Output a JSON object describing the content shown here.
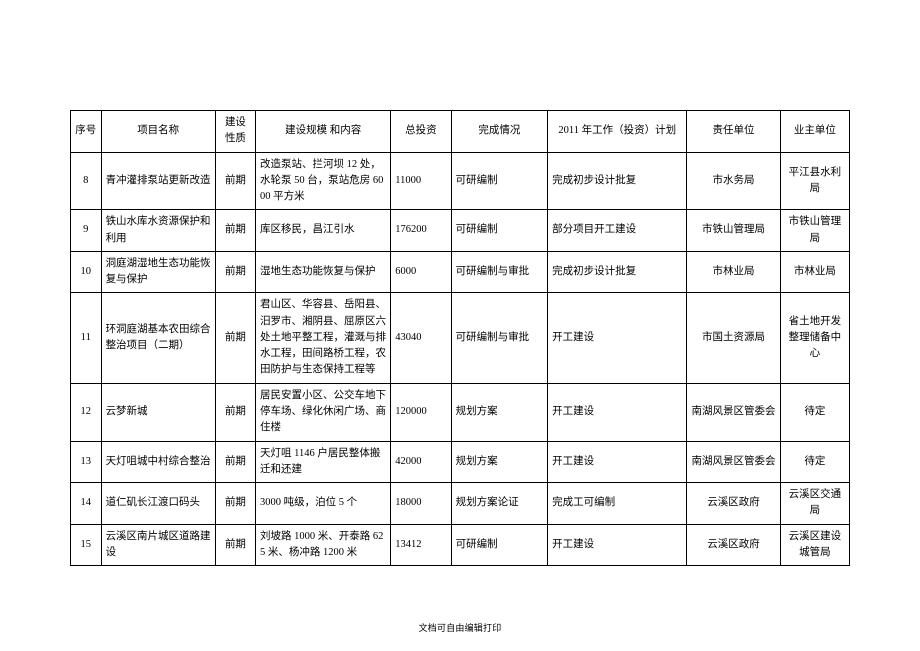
{
  "table": {
    "colwidths_pct": [
      3.8,
      14.2,
      5.0,
      16.8,
      7.5,
      12.0,
      17.3,
      11.6,
      8.6
    ],
    "background_color": "#ffffff",
    "border_color": "#000000",
    "text_color": "#000000",
    "font_size_pt": 10.5,
    "columns": [
      "序号",
      "项目名称",
      "建设性质",
      "建设规模\n和内容",
      "总投资",
      "完成情况",
      "2011 年工作（投资）计划",
      "责任单位",
      "业主单位"
    ],
    "rows": [
      {
        "seq": "8",
        "name": "青冲灌排泵站更新改造",
        "nature": "前期",
        "content": "改造泵站、拦河坝 12 处，水轮泵 50 台，泵站危房 6000 平方米",
        "invest": "11000",
        "status": "可研编制",
        "plan": "完成初步设计批复",
        "resp": "市水务局",
        "owner": "平江县水利局"
      },
      {
        "seq": "9",
        "name": "铁山水库水资源保护和利用",
        "nature": "前期",
        "content": "库区移民，昌江引水",
        "invest": "176200",
        "status": "可研编制",
        "plan": "部分项目开工建设",
        "resp": "市铁山管理局",
        "owner": "市铁山管理局"
      },
      {
        "seq": "10",
        "name": "洞庭湖湿地生态功能恢复与保护",
        "nature": "前期",
        "content": "湿地生态功能恢复与保护",
        "invest": "6000",
        "status": "可研编制与审批",
        "plan": "完成初步设计批复",
        "resp": "市林业局",
        "owner": "市林业局"
      },
      {
        "seq": "11",
        "name": "环洞庭湖基本农田综合整治项目（二期）",
        "nature": "前期",
        "content": "君山区、华容县、岳阳县、汨罗市、湘阴县、屈原区六处土地平整工程，灌溉与排水工程，田间路桥工程，农田防护与生态保持工程等",
        "invest": "43040",
        "status": "可研编制与审批",
        "plan": "开工建设",
        "resp": "市国土资源局",
        "owner": "省土地开发整理储备中心"
      },
      {
        "seq": "12",
        "name": "云梦新城",
        "nature": "前期",
        "content": "居民安置小区、公交车地下停车场、绿化休闲广场、商住楼",
        "invest": "120000",
        "status": "规划方案",
        "plan": "开工建设",
        "resp": "南湖风景区管委会",
        "owner": "待定"
      },
      {
        "seq": "13",
        "name": "天灯咀城中村综合整治",
        "nature": "前期",
        "content": "天灯咀 1146 户居民整体搬迁和还建",
        "invest": "42000",
        "status": "规划方案",
        "plan": "开工建设",
        "resp": "南湖风景区管委会",
        "owner": "待定"
      },
      {
        "seq": "14",
        "name": "道仁矶长江渡口码头",
        "nature": "前期",
        "content": "3000 吨级，泊位 5 个",
        "invest": "18000",
        "status": "规划方案论证",
        "plan": "完成工可编制",
        "resp": "云溪区政府",
        "owner": "云溪区交通局"
      },
      {
        "seq": "15",
        "name": "云溪区南片城区道路建设",
        "nature": "前期",
        "content": "刘坡路 1000 米、开泰路 625 米、杨冲路 1200 米",
        "invest": "13412",
        "status": "可研编制",
        "plan": "开工建设",
        "resp": "云溪区政府",
        "owner": "云溪区建设城管局"
      }
    ]
  },
  "footer": "文档可自由编辑打印"
}
